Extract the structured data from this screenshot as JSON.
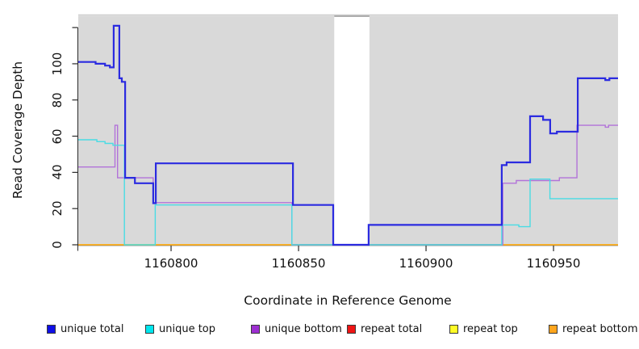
{
  "chart_data": {
    "type": "line",
    "title": "",
    "style": "step-coverage-plot",
    "panel_background": "#D9D9D9",
    "x_axis": {
      "label": "Coordinate in Reference Genome",
      "range": [
        1160763.6,
        1160975.3
      ],
      "ticks": [
        {
          "v": 1160800,
          "t": "1160800"
        },
        {
          "v": 1160850,
          "t": "1160850"
        },
        {
          "v": 1160900,
          "t": "1160900"
        },
        {
          "v": 1160950,
          "t": "1160950"
        }
      ]
    },
    "y_axis": {
      "label": "Read Coverage Depth",
      "range": [
        0,
        126.3
      ],
      "ticks": [
        {
          "v": 0,
          "t": "0"
        },
        {
          "v": 20,
          "t": "20"
        },
        {
          "v": 40,
          "t": "40"
        },
        {
          "v": 60,
          "t": "60"
        },
        {
          "v": 80,
          "t": "80"
        },
        {
          "v": 100,
          "t": "100"
        },
        {
          "v": 120,
          "t": ""
        }
      ]
    },
    "no_data_gap": {
      "from": 1160864.0,
      "to": 1160877.8
    },
    "series": [
      {
        "name": "repeat top",
        "color": "#FFEE00",
        "width": 1.4,
        "steps": [
          [
            1160763.6,
            0
          ]
        ],
        "x_end": 1160975.3
      },
      {
        "name": "repeat bottom",
        "color": "#FFA41E",
        "width": 1.6,
        "steps": [
          [
            1160763.6,
            0
          ]
        ],
        "x_end": 1160975.3
      },
      {
        "name": "repeat total",
        "color": "#CC4257",
        "width": 1.4,
        "steps": [
          [
            1160847.4,
            0
          ]
        ],
        "x_end": 1160929.9
      },
      {
        "name": "unique bottom",
        "color": "#B273D9",
        "width": 1.4,
        "steps": [
          [
            1160763.6,
            43
          ],
          [
            1160778.0,
            66
          ],
          [
            1160779.0,
            37
          ],
          [
            1160793.0,
            23.3
          ],
          [
            1160847.4,
            0
          ],
          [
            1160930.1,
            34
          ],
          [
            1160935.4,
            35.5
          ],
          [
            1160952.3,
            37
          ],
          [
            1160959.2,
            66
          ],
          [
            1160970.3,
            65
          ],
          [
            1160971.6,
            66
          ]
        ],
        "x_end": 1160975.3
      },
      {
        "name": "unique top",
        "color": "#49DCE4",
        "width": 1.4,
        "steps": [
          [
            1160763.6,
            58
          ],
          [
            1160770.9,
            57
          ],
          [
            1160774.1,
            56
          ],
          [
            1160777.2,
            55
          ],
          [
            1160781.7,
            0
          ],
          [
            1160793.8,
            22
          ],
          [
            1160847.4,
            0
          ],
          [
            1160929.7,
            11
          ],
          [
            1160936.4,
            10
          ],
          [
            1160940.8,
            36.3
          ],
          [
            1160948.6,
            25.5
          ]
        ],
        "x_end": 1160975.3
      },
      {
        "name": "unique total",
        "color": "#2B2BE0",
        "width": 2.2,
        "steps": [
          [
            1160763.6,
            101
          ],
          [
            1160770.4,
            100
          ],
          [
            1160774.1,
            99
          ],
          [
            1160776.0,
            98
          ],
          [
            1160777.5,
            121
          ],
          [
            1160779.7,
            92
          ],
          [
            1160780.7,
            90
          ],
          [
            1160782.0,
            37
          ],
          [
            1160785.8,
            34
          ],
          [
            1160793.0,
            23
          ],
          [
            1160794.0,
            45
          ],
          [
            1160847.8,
            22
          ],
          [
            1160863.6,
            0
          ],
          [
            1160877.5,
            11
          ],
          [
            1160929.7,
            44
          ],
          [
            1160931.6,
            45.5
          ],
          [
            1160940.8,
            71
          ],
          [
            1160945.9,
            69
          ],
          [
            1160948.7,
            61.5
          ],
          [
            1160951.3,
            62.5
          ],
          [
            1160959.5,
            92
          ],
          [
            1160970.3,
            91
          ],
          [
            1160971.9,
            92
          ]
        ],
        "x_end": 1160975.3
      }
    ],
    "legend": [
      {
        "label": "unique total",
        "color": "#0F0FE6"
      },
      {
        "label": "unique top",
        "color": "#00E6EE"
      },
      {
        "label": "unique bottom",
        "color": "#9D2FD1"
      },
      {
        "label": "repeat total",
        "color": "#EE1515"
      },
      {
        "label": "repeat top",
        "color": "#FFFB26"
      },
      {
        "label": "repeat bottom",
        "color": "#FFA51D"
      }
    ],
    "legend_position": "bottom"
  }
}
